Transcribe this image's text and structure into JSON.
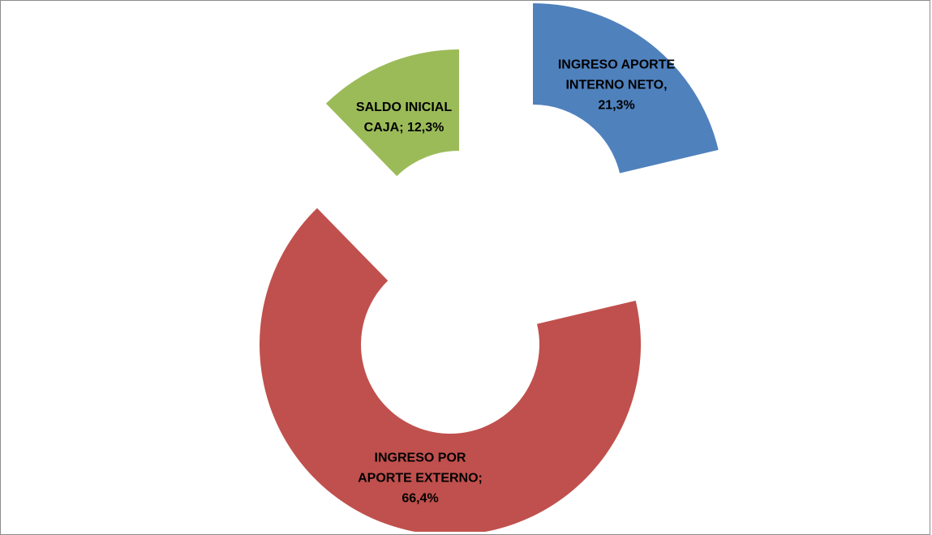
{
  "chart_data": {
    "type": "doughnut",
    "categories": [
      "INGRESO APORTE INTERNO NETO,",
      "INGRESO POR APORTE EXTERNO;",
      "SALDO INICIAL CAJA;"
    ],
    "values": [
      21.3,
      66.4,
      12.3
    ],
    "value_labels": [
      "21,3%",
      "66,4%",
      "12,3%"
    ],
    "colors": [
      "#4f81bd",
      "#c0504d",
      "#9bbb59"
    ]
  }
}
